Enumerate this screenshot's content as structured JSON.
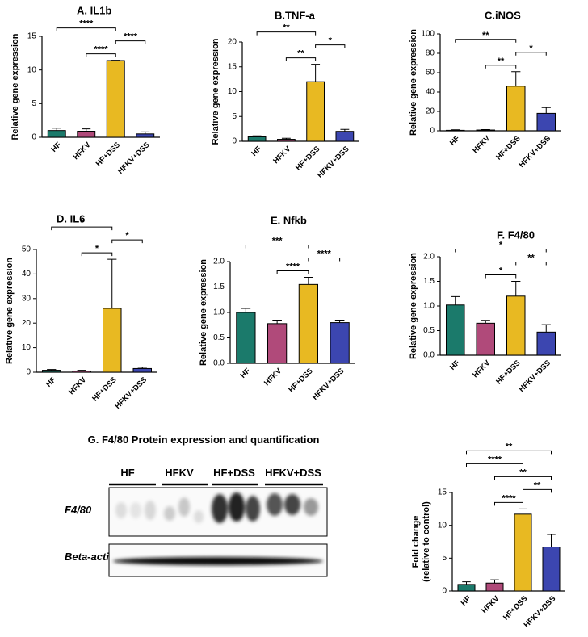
{
  "chart_data": [
    {
      "type": "bar",
      "title": "A. IL1b",
      "ylabel": [
        "Relative gene expression"
      ],
      "categories": [
        "HF",
        "HFKV",
        "HF+DSS",
        "HFKV+DSS"
      ],
      "values": [
        1.0,
        0.9,
        11.4,
        0.5
      ],
      "errors": [
        0.35,
        0.35,
        0.05,
        0.3
      ],
      "colors": [
        "#1b7a6b",
        "#b04a7a",
        "#e8b922",
        "#3c46b0"
      ],
      "ylim": [
        0,
        15
      ],
      "yticks": [
        0,
        5,
        10,
        15
      ],
      "significance": [
        {
          "from": "HF",
          "to": "HF+DSS",
          "label": "****"
        },
        {
          "from": "HFKV",
          "to": "HF+DSS",
          "label": "****"
        },
        {
          "from": "HF+DSS",
          "to": "HFKV+DSS",
          "label": "****"
        }
      ]
    },
    {
      "type": "bar",
      "title": "B.TNF-a",
      "ylabel": [
        "Relative gene expression"
      ],
      "categories": [
        "HF",
        "HFKV",
        "HF+DSS",
        "HFKV+DSS"
      ],
      "values": [
        0.9,
        0.4,
        12,
        2
      ],
      "errors": [
        0.2,
        0.2,
        3.5,
        0.4
      ],
      "colors": [
        "#1b7a6b",
        "#b04a7a",
        "#e8b922",
        "#3c46b0"
      ],
      "ylim": [
        0,
        20
      ],
      "yticks": [
        0,
        5,
        10,
        15,
        20
      ],
      "significance": [
        {
          "from": "HF",
          "to": "HF+DSS",
          "label": "**"
        },
        {
          "from": "HFKV",
          "to": "HF+DSS",
          "label": "**"
        },
        {
          "from": "HF+DSS",
          "to": "HFKV+DSS",
          "label": "*"
        }
      ]
    },
    {
      "type": "bar",
      "title": "C.iNOS",
      "ylabel": [
        "Relative gene expression"
      ],
      "categories": [
        "HF",
        "HFKV",
        "HF+DSS",
        "HFKV+DSS"
      ],
      "values": [
        0.5,
        0.8,
        46,
        18
      ],
      "errors": [
        0.5,
        0.5,
        15,
        6
      ],
      "colors": [
        "#1b7a6b",
        "#b04a7a",
        "#e8b922",
        "#3c46b0"
      ],
      "ylim": [
        0,
        100
      ],
      "yticks": [
        0,
        20,
        40,
        60,
        80,
        100
      ],
      "significance": [
        {
          "from": "HF",
          "to": "HF+DSS",
          "label": "**"
        },
        {
          "from": "HFKV",
          "to": "HF+DSS",
          "label": "**"
        },
        {
          "from": "HF+DSS",
          "to": "HFKV+DSS",
          "label": "*"
        }
      ]
    },
    {
      "type": "bar",
      "title": "D. IL6",
      "ylabel": [
        "Relative gene expression"
      ],
      "categories": [
        "HF",
        "HFKV",
        "HF+DSS",
        "HFKV+DSS"
      ],
      "values": [
        0.8,
        0.5,
        26,
        1.5
      ],
      "errors": [
        0.3,
        0.3,
        20,
        0.5
      ],
      "colors": [
        "#1b7a6b",
        "#b04a7a",
        "#e8b922",
        "#3c46b0"
      ],
      "ylim": [
        0,
        50
      ],
      "yticks": [
        0,
        10,
        20,
        30,
        40,
        50
      ],
      "significance": [
        {
          "from": "HF",
          "to": "HF+DSS",
          "label": "*"
        },
        {
          "from": "HFKV",
          "to": "HF+DSS",
          "label": "*"
        },
        {
          "from": "HF+DSS",
          "to": "HFKV+DSS",
          "label": "*"
        }
      ]
    },
    {
      "type": "bar",
      "title": "E. Nfkb",
      "ylabel": [
        "Relative gene expression"
      ],
      "categories": [
        "HF",
        "HFKV",
        "HF+DSS",
        "HFKV+DSS"
      ],
      "values": [
        1.0,
        0.78,
        1.55,
        0.8
      ],
      "errors": [
        0.08,
        0.07,
        0.14,
        0.05
      ],
      "colors": [
        "#1b7a6b",
        "#b04a7a",
        "#e8b922",
        "#3c46b0"
      ],
      "ylim": [
        0,
        2
      ],
      "yticks": [
        {
          "value": 0,
          "label": "0.0"
        },
        {
          "value": 0.5,
          "label": "0.5"
        },
        {
          "value": 1,
          "label": "1.0"
        },
        {
          "value": 1.5,
          "label": "1.5"
        },
        {
          "value": 2,
          "label": "2.0"
        }
      ],
      "significance": [
        {
          "from": "HF",
          "to": "HF+DSS",
          "label": "***"
        },
        {
          "from": "HFKV",
          "to": "HF+DSS",
          "label": "****"
        },
        {
          "from": "HF+DSS",
          "to": "HFKV+DSS",
          "label": "****"
        }
      ]
    },
    {
      "type": "bar",
      "title": "F. F4/80",
      "ylabel": [
        "Relative gene expression"
      ],
      "categories": [
        "HF",
        "HFKV",
        "HF+DSS",
        "HFKV+DSS"
      ],
      "values": [
        1.02,
        0.65,
        1.2,
        0.47
      ],
      "errors": [
        0.17,
        0.06,
        0.3,
        0.15
      ],
      "colors": [
        "#1b7a6b",
        "#b04a7a",
        "#e8b922",
        "#3c46b0"
      ],
      "ylim": [
        0,
        2
      ],
      "yticks": [
        {
          "value": 0,
          "label": "0.0"
        },
        {
          "value": 0.5,
          "label": "0.5"
        },
        {
          "value": 1,
          "label": "1.0"
        },
        {
          "value": 1.5,
          "label": "1.5"
        },
        {
          "value": 2,
          "label": "2.0"
        }
      ],
      "significance": [
        {
          "from": "HF",
          "to": "HFKV+DSS",
          "label": "*"
        },
        {
          "from": "HFKV",
          "to": "HF+DSS",
          "label": "*"
        },
        {
          "from": "HF+DSS",
          "to": "HFKV+DSS",
          "label": "**"
        }
      ]
    },
    {
      "type": "bar",
      "ylabel": [
        "Fold change",
        "(relative to control)"
      ],
      "categories": [
        "HF",
        "HFKV",
        "HF+DSS",
        "HFKV+DSS"
      ],
      "values": [
        1.0,
        1.2,
        11.7,
        6.7
      ],
      "errors": [
        0.4,
        0.5,
        0.8,
        1.9
      ],
      "colors": [
        "#1b7a6b",
        "#b04a7a",
        "#e8b922",
        "#3c46b0"
      ],
      "ylim": [
        0,
        15
      ],
      "yticks": [
        0,
        5,
        10,
        15
      ],
      "significance": [
        {
          "from": "HF",
          "to": "HFKV+DSS",
          "label": "**"
        },
        {
          "from": "HFKV",
          "to": "HFKV+DSS",
          "label": "**"
        },
        {
          "from": "HF",
          "to": "HF+DSS",
          "label": "****"
        },
        {
          "from": "HFKV",
          "to": "HF+DSS",
          "label": "****"
        },
        {
          "from": "HF+DSS",
          "to": "HFKV+DSS",
          "label": "**"
        }
      ]
    }
  ],
  "blot": {
    "title": "G. F4/80 Protein expression and quantification",
    "groups": [
      "HF",
      "HFKV",
      "HF+DSS",
      "HFKV+DSS"
    ],
    "rows": [
      "F4/80",
      "Beta-actin"
    ]
  }
}
